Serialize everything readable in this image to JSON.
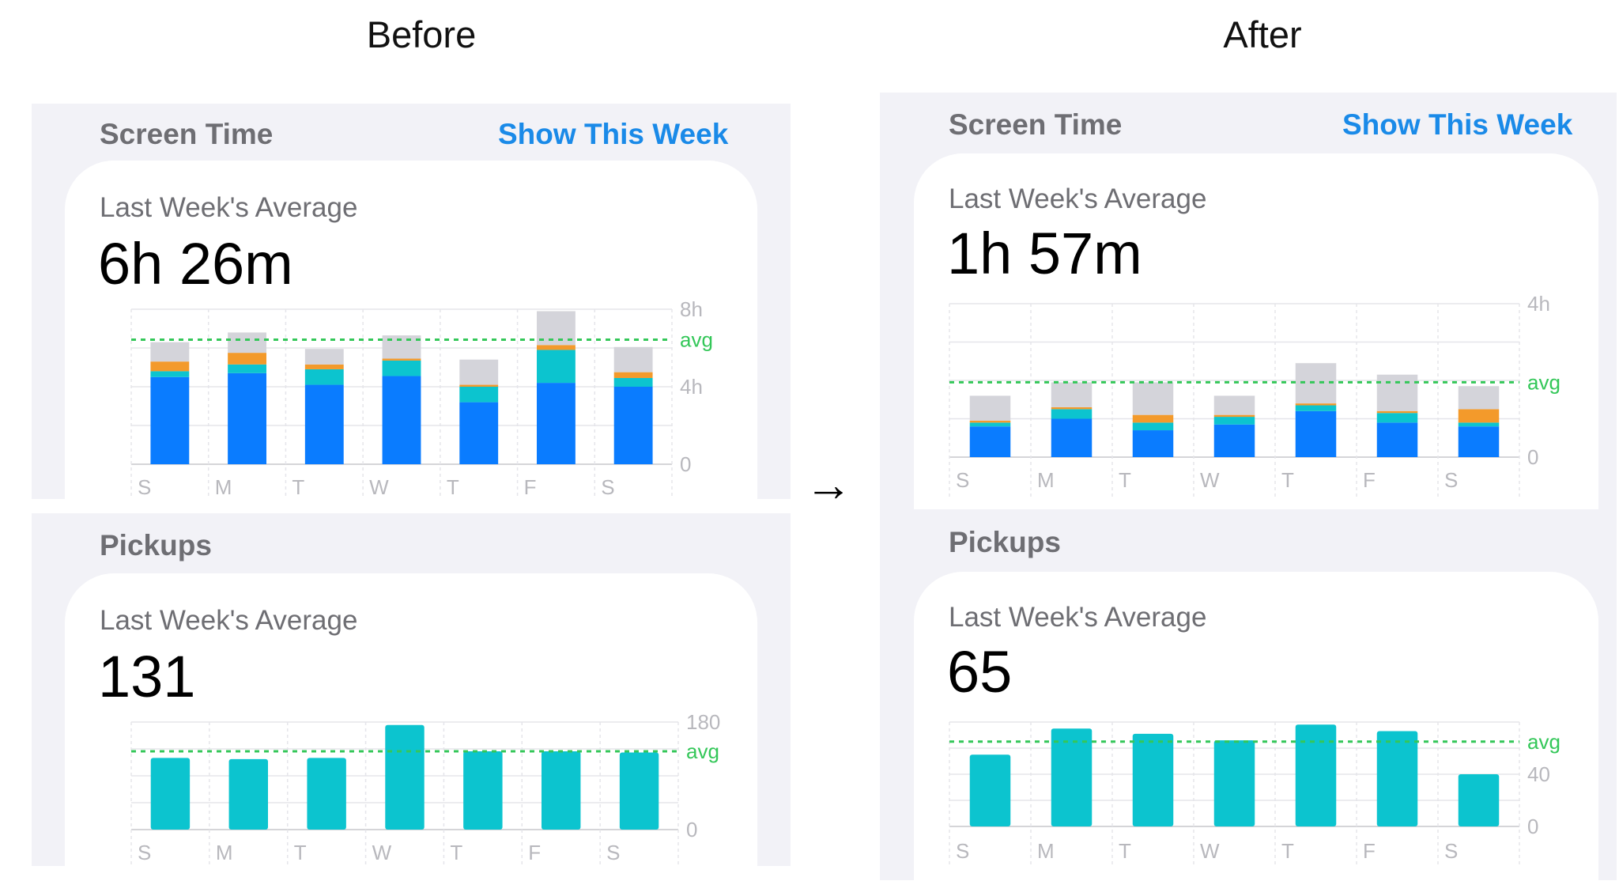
{
  "headings": {
    "before": "Before",
    "after": "After"
  },
  "arrow_glyph": "→",
  "before": {
    "screen_time": {
      "section_title": "Screen Time",
      "link": "Show This Week",
      "avg_label": "Last Week's Average",
      "value": "6h 26m"
    },
    "pickups": {
      "section_title": "Pickups",
      "avg_label": "Last Week's Average",
      "value": "131"
    }
  },
  "after": {
    "screen_time": {
      "section_title": "Screen Time",
      "link": "Show This Week",
      "avg_label": "Last Week's Average",
      "value": "1h 57m"
    },
    "pickups": {
      "section_title": "Pickups",
      "avg_label": "Last Week's Average",
      "value": "65"
    }
  },
  "colors": {
    "blue": "#0a7cff",
    "teal": "#0cc4cf",
    "orange": "#f39a2b",
    "gray": "#d4d4da",
    "avg_line": "#34c759",
    "axis": "#c7c7cc",
    "grid": "#e5e5ea",
    "tick": "#b8b8bd"
  },
  "chart_data": [
    {
      "id": "before-screen-time",
      "type": "bar",
      "stacked": true,
      "title": "Screen Time",
      "categories": [
        "S",
        "M",
        "T",
        "W",
        "T",
        "F",
        "S"
      ],
      "series": [
        {
          "name": "blue",
          "color": "#0a7cff",
          "values": [
            4.5,
            4.7,
            4.1,
            4.55,
            3.2,
            4.2,
            4.0
          ]
        },
        {
          "name": "teal",
          "color": "#0cc4cf",
          "values": [
            0.3,
            0.45,
            0.8,
            0.8,
            0.8,
            1.7,
            0.45
          ]
        },
        {
          "name": "orange",
          "color": "#f39a2b",
          "values": [
            0.5,
            0.6,
            0.25,
            0.1,
            0.1,
            0.25,
            0.3
          ]
        },
        {
          "name": "gray",
          "color": "#d4d4da",
          "values": [
            1.0,
            1.05,
            0.8,
            1.2,
            1.3,
            1.75,
            1.3
          ]
        }
      ],
      "ylim": [
        0,
        8
      ],
      "ticks": [
        {
          "value": 8,
          "label": "8h"
        },
        {
          "value": 4,
          "label": "4h"
        },
        {
          "value": 0,
          "label": "0"
        }
      ],
      "avg": {
        "value": 6.43,
        "label": "avg"
      }
    },
    {
      "id": "before-pickups",
      "type": "bar",
      "title": "Pickups",
      "categories": [
        "S",
        "M",
        "T",
        "W",
        "T",
        "F",
        "S"
      ],
      "values": [
        120,
        118,
        120,
        175,
        131,
        131,
        129
      ],
      "color": "#0cc4cf",
      "ylim": [
        0,
        180
      ],
      "ticks": [
        {
          "value": 180,
          "label": "180"
        },
        {
          "value": 0,
          "label": "0"
        }
      ],
      "avg": {
        "value": 131,
        "label": "avg"
      }
    },
    {
      "id": "after-screen-time",
      "type": "bar",
      "stacked": true,
      "title": "Screen Time",
      "categories": [
        "S",
        "M",
        "T",
        "W",
        "T",
        "F",
        "S"
      ],
      "series": [
        {
          "name": "blue",
          "color": "#0a7cff",
          "values": [
            0.8,
            1.0,
            0.7,
            0.85,
            1.2,
            0.9,
            0.8
          ]
        },
        {
          "name": "teal",
          "color": "#0cc4cf",
          "values": [
            0.1,
            0.25,
            0.2,
            0.2,
            0.15,
            0.25,
            0.1
          ]
        },
        {
          "name": "orange",
          "color": "#f39a2b",
          "values": [
            0.05,
            0.05,
            0.2,
            0.05,
            0.05,
            0.05,
            0.35
          ]
        },
        {
          "name": "gray",
          "color": "#d4d4da",
          "values": [
            0.65,
            0.65,
            0.85,
            0.5,
            1.05,
            0.95,
            0.6
          ]
        }
      ],
      "ylim": [
        0,
        4
      ],
      "ticks": [
        {
          "value": 4,
          "label": "4h"
        },
        {
          "value": 0,
          "label": "0"
        }
      ],
      "avg": {
        "value": 1.95,
        "label": "avg"
      }
    },
    {
      "id": "after-pickups",
      "type": "bar",
      "title": "Pickups",
      "categories": [
        "S",
        "M",
        "T",
        "W",
        "T",
        "F",
        "S"
      ],
      "values": [
        55,
        75,
        71,
        66,
        78,
        73,
        40
      ],
      "color": "#0cc4cf",
      "ylim": [
        0,
        80
      ],
      "ticks": [
        {
          "value": 40,
          "label": "40"
        },
        {
          "value": 0,
          "label": "0"
        }
      ],
      "avg": {
        "value": 65,
        "label": "avg"
      }
    }
  ]
}
